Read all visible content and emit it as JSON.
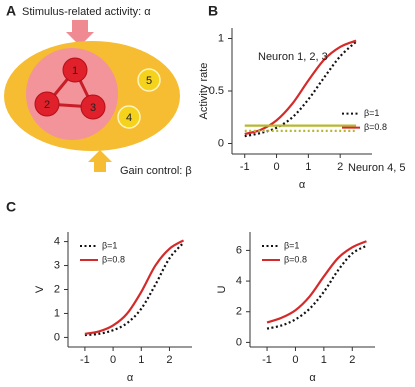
{
  "panel_labels": [
    "A",
    "B",
    "C"
  ],
  "diagram": {
    "stimulus_label": "Stimulus-related activity: α",
    "gain_label": "Gain control: β",
    "nodes": [
      {
        "label": "1"
      },
      {
        "label": "2"
      },
      {
        "label": "3"
      },
      {
        "label": "4"
      },
      {
        "label": "5"
      }
    ]
  },
  "chart_data": [
    {
      "type": "line",
      "ylabel": "Activity rate",
      "xlabel": "α",
      "x": [
        -1,
        -0.5,
        0,
        0.5,
        1,
        1.5,
        2,
        2.5
      ],
      "xlim": [
        -1.4,
        3
      ],
      "xticks": [
        -1,
        0,
        1,
        2
      ],
      "ylim": [
        -0.1,
        1.1
      ],
      "yticks": [
        0,
        0.5,
        1
      ],
      "legend": "center right",
      "annotations": [
        "Neuron 1, 2, 3",
        "Neuron 4, 5"
      ],
      "series": [
        {
          "name": "β=1",
          "color": "#111111",
          "linestyle": "dotted",
          "values": [
            0.07,
            0.1,
            0.15,
            0.25,
            0.42,
            0.63,
            0.83,
            0.97
          ]
        },
        {
          "name": "β=0.8",
          "color": "#d42a2a",
          "linestyle": "solid",
          "values": [
            0.09,
            0.13,
            0.22,
            0.38,
            0.6,
            0.8,
            0.92,
            0.98
          ]
        },
        {
          "color": "#b8b830",
          "linestyle": "solid",
          "values": [
            0.17,
            0.17,
            0.17,
            0.17,
            0.17,
            0.17,
            0.17,
            0.17
          ]
        },
        {
          "color": "#b8b830",
          "linestyle": "dotted",
          "values": [
            0.12,
            0.12,
            0.12,
            0.12,
            0.12,
            0.12,
            0.12,
            0.12
          ]
        }
      ]
    },
    {
      "type": "line",
      "ylabel": "V",
      "xlabel": "α",
      "x": [
        -1,
        -0.5,
        0,
        0.5,
        1,
        1.5,
        2,
        2.5
      ],
      "xlim": [
        -1.6,
        2.8
      ],
      "xticks": [
        -1,
        0,
        1,
        2
      ],
      "ylim": [
        -0.4,
        4.4
      ],
      "yticks": [
        0,
        1,
        2,
        3,
        4
      ],
      "legend": "upper left",
      "series": [
        {
          "name": "β=1",
          "color": "#111111",
          "linestyle": "dotted",
          "values": [
            0.1,
            0.15,
            0.3,
            0.6,
            1.2,
            2.2,
            3.3,
            3.95
          ]
        },
        {
          "name": "β=0.8",
          "color": "#d42a2a",
          "linestyle": "solid",
          "values": [
            0.15,
            0.25,
            0.5,
            1.0,
            1.9,
            3.0,
            3.7,
            4.05
          ]
        }
      ]
    },
    {
      "type": "line",
      "ylabel": "U",
      "xlabel": "α",
      "x": [
        -1,
        -0.5,
        0,
        0.5,
        1,
        1.5,
        2,
        2.5
      ],
      "xlim": [
        -1.6,
        2.8
      ],
      "xticks": [
        -1,
        0,
        1,
        2
      ],
      "ylim": [
        -0.3,
        7.2
      ],
      "yticks": [
        0,
        2,
        4,
        6
      ],
      "legend": "upper left",
      "series": [
        {
          "name": "β=1",
          "color": "#111111",
          "linestyle": "dotted",
          "values": [
            0.9,
            1.1,
            1.5,
            2.2,
            3.3,
            4.7,
            5.8,
            6.3
          ]
        },
        {
          "name": "β=0.8",
          "color": "#d42a2a",
          "linestyle": "solid",
          "values": [
            1.3,
            1.6,
            2.1,
            3.0,
            4.3,
            5.5,
            6.2,
            6.6
          ]
        }
      ]
    }
  ]
}
